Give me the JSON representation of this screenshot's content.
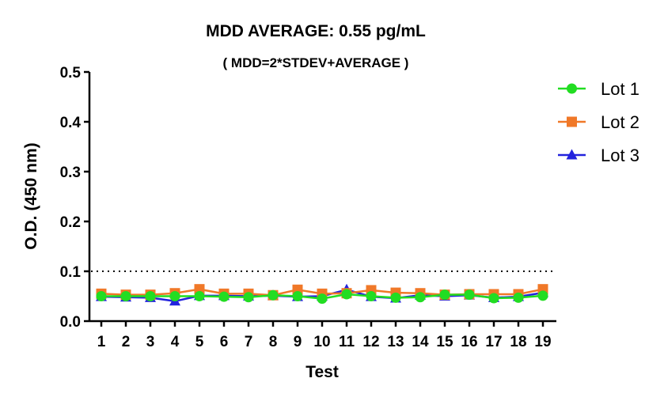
{
  "chart_data": {
    "type": "line",
    "title": "MDD AVERAGE:  0.55 pg/mL",
    "subtitle": "( MDD=2*STDEV+AVERAGE )",
    "xlabel": "Test",
    "ylabel": "O.D. (450 nm)",
    "x": [
      1,
      2,
      3,
      4,
      5,
      6,
      7,
      8,
      9,
      10,
      11,
      12,
      13,
      14,
      15,
      16,
      17,
      18,
      19
    ],
    "x_tick_labels": [
      "1",
      "2",
      "3",
      "4",
      "5",
      "6",
      "7",
      "8",
      "9",
      "10",
      "11",
      "12",
      "13",
      "14",
      "15",
      "16",
      "17",
      "18",
      "19"
    ],
    "ylim": [
      0,
      0.5
    ],
    "y_tick_labels": [
      "0.0",
      "0.1",
      "0.2",
      "0.3",
      "0.4",
      "0.5"
    ],
    "reference_line": {
      "y": 0.1,
      "style": "dotted"
    },
    "legend_position": "right",
    "series": [
      {
        "name": "Lot 1",
        "color": "#22dd22",
        "marker": "circle",
        "values": [
          0.05,
          0.05,
          0.05,
          0.05,
          0.05,
          0.049,
          0.048,
          0.052,
          0.05,
          0.045,
          0.054,
          0.05,
          0.047,
          0.048,
          0.053,
          0.053,
          0.046,
          0.047,
          0.051
        ]
      },
      {
        "name": "Lot 2",
        "color": "#f07828",
        "marker": "square",
        "values": [
          0.055,
          0.053,
          0.053,
          0.056,
          0.064,
          0.055,
          0.055,
          0.052,
          0.063,
          0.055,
          0.056,
          0.062,
          0.057,
          0.056,
          0.053,
          0.054,
          0.054,
          0.054,
          0.064
        ]
      },
      {
        "name": "Lot 3",
        "color": "#2222dd",
        "marker": "triangle",
        "values": [
          0.049,
          0.048,
          0.047,
          0.04,
          0.051,
          0.051,
          0.05,
          0.051,
          0.049,
          0.05,
          0.063,
          0.049,
          0.046,
          0.052,
          0.05,
          0.052,
          0.047,
          0.049,
          0.057
        ]
      }
    ]
  }
}
